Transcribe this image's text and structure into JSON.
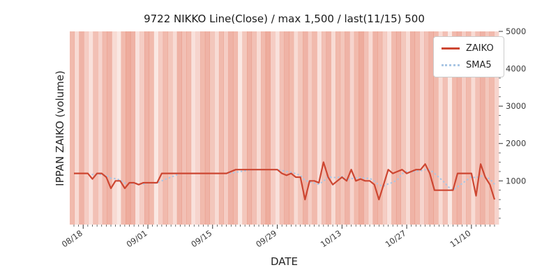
{
  "chart_data": {
    "type": "line",
    "title": "9722 NIKKO Line(Close) / max 1,500 / last(11/15) 500",
    "xlabel": "DATE",
    "ylabel": "IPPAN ZAIKO (volume)",
    "ylim": [
      -170,
      5000
    ],
    "y_ticks": [
      1000,
      2000,
      3000,
      4000,
      5000
    ],
    "x_tick_labels": [
      "08/18",
      "09/01",
      "09/15",
      "09/29",
      "10/13",
      "10/27",
      "11/10"
    ],
    "x_tick_indices": [
      2,
      16,
      30,
      44,
      58,
      72,
      86
    ],
    "legend_position": "upper-right",
    "grid": false,
    "dates": [
      "08/16",
      "08/17",
      "08/18",
      "08/19",
      "08/20",
      "08/21",
      "08/22",
      "08/23",
      "08/24",
      "08/25",
      "08/26",
      "08/27",
      "08/28",
      "08/29",
      "08/30",
      "08/31",
      "09/01",
      "09/02",
      "09/03",
      "09/04",
      "09/05",
      "09/06",
      "09/07",
      "09/08",
      "09/09",
      "09/10",
      "09/11",
      "09/12",
      "09/13",
      "09/14",
      "09/15",
      "09/16",
      "09/17",
      "09/18",
      "09/19",
      "09/20",
      "09/21",
      "09/22",
      "09/23",
      "09/24",
      "09/25",
      "09/26",
      "09/27",
      "09/28",
      "09/29",
      "09/30",
      "10/01",
      "10/02",
      "10/03",
      "10/04",
      "10/05",
      "10/06",
      "10/07",
      "10/08",
      "10/09",
      "10/10",
      "10/11",
      "10/12",
      "10/13",
      "10/14",
      "10/15",
      "10/16",
      "10/17",
      "10/18",
      "10/19",
      "10/20",
      "10/21",
      "10/22",
      "10/23",
      "10/24",
      "10/25",
      "10/26",
      "10/27",
      "10/28",
      "10/29",
      "10/30",
      "10/31",
      "11/01",
      "11/02",
      "11/03",
      "11/04",
      "11/05",
      "11/06",
      "11/07",
      "11/08",
      "11/09",
      "11/10",
      "11/11",
      "11/12",
      "11/13",
      "11/14",
      "11/15"
    ],
    "series": [
      {
        "name": "ZAIKO",
        "style": "solid",
        "color": "#cd4631",
        "values": [
          1200,
          1200,
          1200,
          1200,
          1050,
          1200,
          1200,
          1100,
          800,
          1000,
          1000,
          800,
          950,
          950,
          900,
          950,
          950,
          950,
          950,
          1200,
          1200,
          1200,
          1200,
          1200,
          1200,
          1200,
          1200,
          1200,
          1200,
          1200,
          1200,
          1200,
          1200,
          1200,
          1250,
          1300,
          1300,
          1300,
          1300,
          1300,
          1300,
          1300,
          1300,
          1300,
          1300,
          1200,
          1150,
          1200,
          1100,
          1100,
          500,
          1000,
          1000,
          950,
          1500,
          1100,
          900,
          1000,
          1100,
          1000,
          1300,
          1000,
          1050,
          1000,
          1000,
          900,
          500,
          900,
          1300,
          1200,
          1250,
          1300,
          1200,
          1250,
          1300,
          1300,
          1450,
          1200,
          750,
          750,
          750,
          750,
          750,
          1200,
          1200,
          1200,
          1200,
          600,
          1450,
          1100,
          900,
          500
        ]
      },
      {
        "name": "SMA5",
        "style": "dotted",
        "color": "#a9c6e4",
        "derived": "5-period moving average of ZAIKO"
      }
    ],
    "background_bands": {
      "color": "#dd5a3c",
      "intensities": [
        0.45,
        0.2,
        0.5,
        0.3,
        0.15,
        0.4,
        0.25,
        0.45,
        0.5,
        0.2,
        0.1,
        0.45,
        0.55,
        0.5,
        0.15,
        0.3,
        0.5,
        0.45,
        0.1,
        0.3,
        0.45,
        0.35,
        0.2,
        0.5,
        0.4,
        0.45,
        0.15,
        0.25,
        0.45,
        0.5,
        0.35,
        0.2,
        0.45,
        0.3,
        0.5,
        0.45,
        0.1,
        0.35,
        0.5,
        0.4,
        0.2,
        0.45,
        0.55,
        0.3,
        0.15,
        0.4,
        0.5,
        0.45,
        0.2,
        0.35,
        0.5,
        0.3,
        0.45,
        0.15,
        0.4,
        0.5,
        0.2,
        0.45,
        0.35,
        0.5,
        0.25,
        0.45,
        0.55,
        0.4,
        0.2,
        0.5,
        0.45,
        0.3,
        0.15,
        0.45,
        0.5,
        0.35,
        0.2,
        0.5,
        0.45,
        0.25,
        0.4,
        0.5,
        0.45,
        0.2,
        0.4,
        0.1,
        0.45,
        0.5,
        0.3,
        0.45,
        0.2,
        0.4,
        0.5,
        0.35,
        0.45,
        0.25
      ]
    },
    "stats": {
      "max_label": "max 1,500",
      "last_label": "last(11/15) 500",
      "max_value": 1500,
      "last_value": 500
    }
  }
}
